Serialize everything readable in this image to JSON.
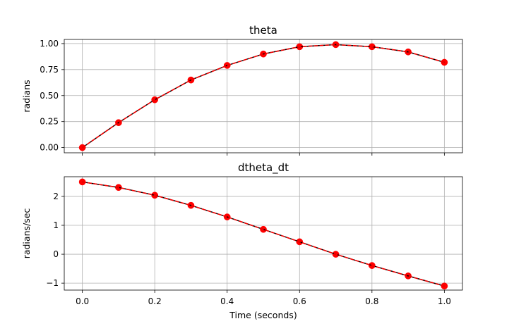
{
  "chart_data": [
    {
      "type": "line",
      "title": "theta",
      "xlabel": "",
      "ylabel": "radians",
      "xlim": [
        -0.05,
        1.05
      ],
      "ylim": [
        -0.05,
        1.04
      ],
      "x_ticks": [
        0.0,
        0.2,
        0.4,
        0.6,
        0.8,
        1.0
      ],
      "x_tick_labels_visible": false,
      "y_ticks": [
        0.0,
        0.25,
        0.5,
        0.75,
        1.0
      ],
      "y_tick_labels": [
        "0.00",
        "0.25",
        "0.50",
        "0.75",
        "1.00"
      ],
      "grid": true,
      "series": [
        {
          "x": [
            0.0,
            0.1,
            0.2,
            0.3,
            0.4,
            0.5,
            0.6,
            0.7,
            0.8,
            0.9,
            1.0
          ],
          "values": [
            0.0,
            0.24,
            0.46,
            0.65,
            0.79,
            0.9,
            0.97,
            0.99,
            0.97,
            0.92,
            0.82
          ],
          "style": "markers",
          "color": "#ff0000"
        },
        {
          "x": [
            0.0,
            0.1,
            0.2,
            0.3,
            0.4,
            0.5,
            0.6,
            0.7,
            0.8,
            0.9,
            1.0
          ],
          "values": [
            0.0,
            0.24,
            0.46,
            0.65,
            0.79,
            0.9,
            0.97,
            0.99,
            0.97,
            0.92,
            0.82
          ],
          "style": "solid",
          "color": "#000000"
        },
        {
          "x": [
            0.0,
            0.1,
            0.2,
            0.3,
            0.4,
            0.5,
            0.6,
            0.7,
            0.8,
            0.9,
            1.0
          ],
          "values": [
            0.0,
            0.24,
            0.46,
            0.65,
            0.79,
            0.9,
            0.97,
            0.99,
            0.97,
            0.92,
            0.82
          ],
          "style": "dashed",
          "color": "#ff0000"
        }
      ]
    },
    {
      "type": "line",
      "title": "dtheta_dt",
      "xlabel": "Time (seconds)",
      "ylabel": "radians/sec",
      "xlim": [
        -0.05,
        1.05
      ],
      "ylim": [
        -1.24,
        2.68
      ],
      "x_ticks": [
        0.0,
        0.2,
        0.4,
        0.6,
        0.8,
        1.0
      ],
      "x_tick_labels": [
        "0.0",
        "0.2",
        "0.4",
        "0.6",
        "0.8",
        "1.0"
      ],
      "x_tick_labels_visible": true,
      "y_ticks": [
        -1,
        0,
        1,
        2
      ],
      "y_tick_labels": [
        "−1",
        "0",
        "1",
        "2"
      ],
      "grid": true,
      "series": [
        {
          "x": [
            0.0,
            0.1,
            0.2,
            0.3,
            0.4,
            0.5,
            0.6,
            0.7,
            0.8,
            0.9,
            1.0
          ],
          "values": [
            2.5,
            2.31,
            2.04,
            1.69,
            1.29,
            0.86,
            0.43,
            0.0,
            -0.39,
            -0.75,
            -1.1
          ],
          "style": "markers",
          "color": "#ff0000"
        },
        {
          "x": [
            0.0,
            0.1,
            0.2,
            0.3,
            0.4,
            0.5,
            0.6,
            0.7,
            0.8,
            0.9,
            1.0
          ],
          "values": [
            2.5,
            2.31,
            2.04,
            1.69,
            1.29,
            0.86,
            0.43,
            0.0,
            -0.39,
            -0.75,
            -1.1
          ],
          "style": "solid",
          "color": "#000000"
        },
        {
          "x": [
            0.0,
            0.1,
            0.2,
            0.3,
            0.4,
            0.5,
            0.6,
            0.7,
            0.8,
            0.9,
            1.0
          ],
          "values": [
            2.5,
            2.31,
            2.04,
            1.69,
            1.29,
            0.86,
            0.43,
            0.0,
            -0.39,
            -0.75,
            -1.1
          ],
          "style": "dashed",
          "color": "#ff0000"
        }
      ]
    }
  ]
}
